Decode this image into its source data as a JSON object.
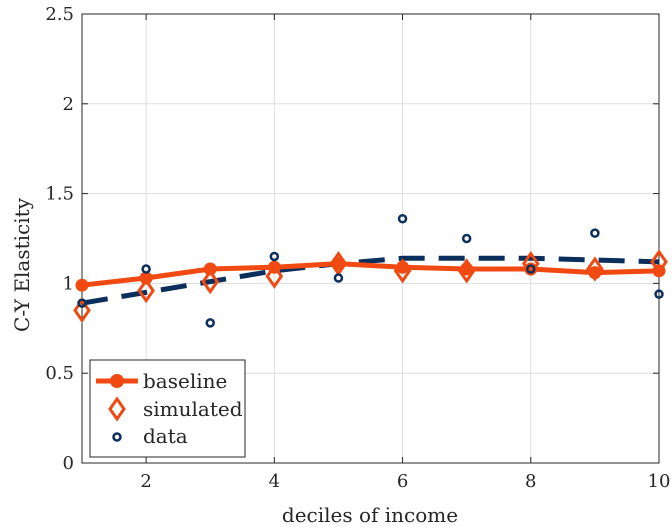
{
  "colors": {
    "baseline": "#f04a12",
    "simulated": "#f04a12",
    "data_points": "#0b2f5c",
    "fit_line": "#0b2f5c",
    "axis": "#262626",
    "grid": "#dedede"
  },
  "chart_data": {
    "type": "line",
    "title": "",
    "xlabel": "deciles of income",
    "ylabel": "C-Y Elasticity",
    "xlim": [
      1,
      10
    ],
    "ylim": [
      0,
      2.5
    ],
    "xticks": [
      2,
      4,
      6,
      8,
      10
    ],
    "xtick_labels": [
      "2",
      "4",
      "6",
      "8",
      "10"
    ],
    "yticks": [
      0,
      0.5,
      1,
      1.5,
      2,
      2.5
    ],
    "ytick_labels": [
      "0",
      "0.5",
      "1",
      "1.5",
      "2",
      "2.5"
    ],
    "grid": true,
    "legend_position": "bottom-left",
    "x": [
      1,
      2,
      3,
      4,
      5,
      6,
      7,
      8,
      9,
      10
    ],
    "series": [
      {
        "name": "baseline",
        "style": "solid-line-filled-circles",
        "values": [
          0.99,
          1.03,
          1.08,
          1.09,
          1.11,
          1.09,
          1.08,
          1.08,
          1.06,
          1.07
        ]
      },
      {
        "name": "simulated",
        "style": "open-diamonds",
        "values": [
          0.85,
          0.96,
          1.01,
          1.04,
          1.11,
          1.07,
          1.07,
          1.11,
          1.08,
          1.12
        ]
      },
      {
        "name": "data",
        "style": "open-circles",
        "values": [
          0.89,
          1.08,
          0.78,
          1.15,
          1.03,
          1.36,
          1.25,
          1.08,
          1.28,
          0.94
        ]
      },
      {
        "style": "dashed-line",
        "values": [
          0.89,
          0.95,
          1.01,
          1.07,
          1.11,
          1.14,
          1.14,
          1.14,
          1.13,
          1.12
        ]
      }
    ],
    "legend": [
      {
        "label": "baseline"
      },
      {
        "label": "simulated"
      },
      {
        "label": "data"
      }
    ]
  }
}
